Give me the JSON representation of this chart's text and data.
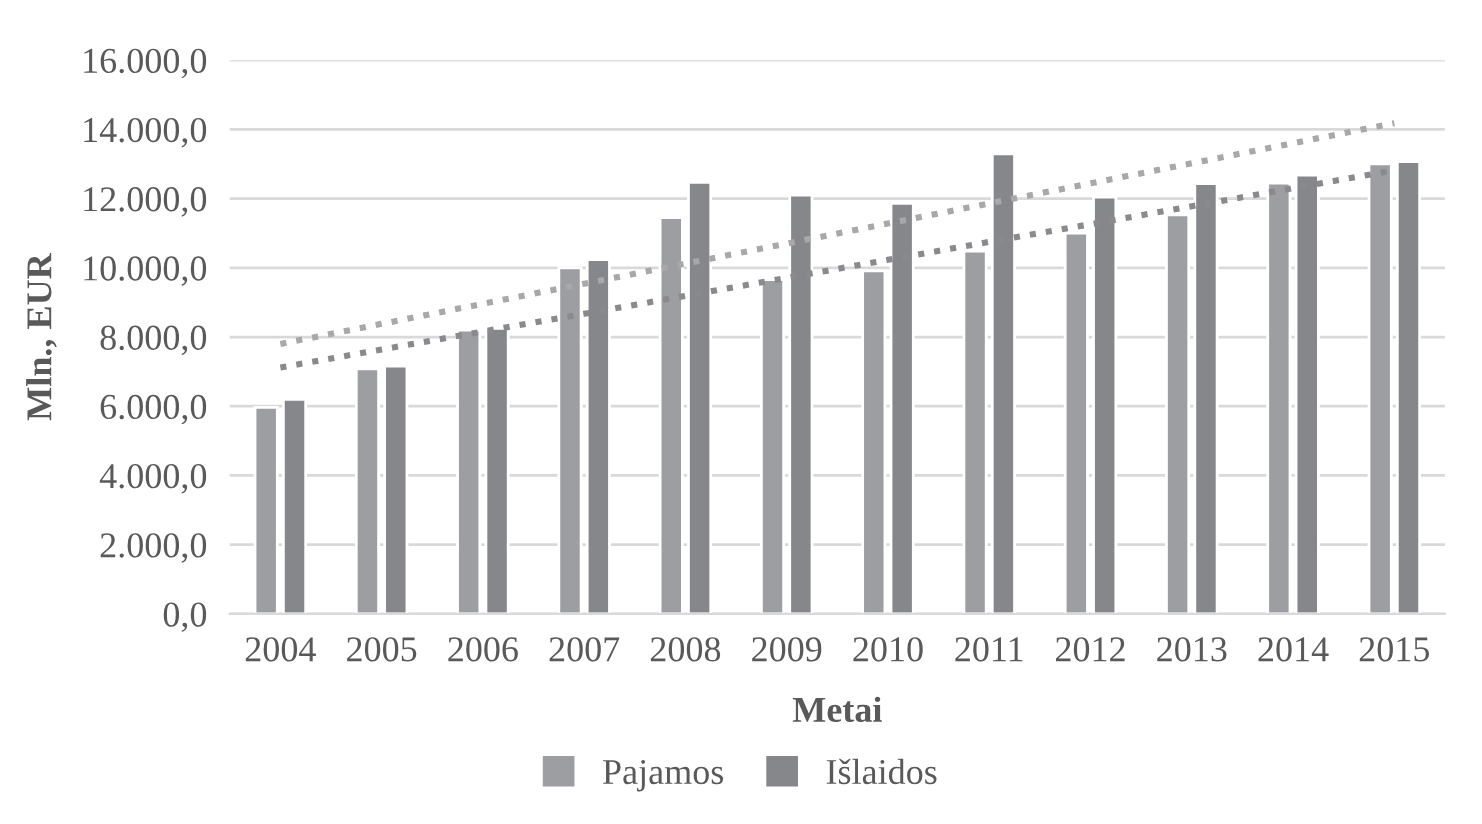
{
  "chart_data": {
    "type": "bar",
    "xlabel": "Metai",
    "ylabel": "Mln., EUR",
    "categories": [
      "2004",
      "2005",
      "2006",
      "2007",
      "2008",
      "2009",
      "2010",
      "2011",
      "2012",
      "2013",
      "2014",
      "2015"
    ],
    "series": [
      {
        "name": "Pajamos",
        "color": "#9d9ea2",
        "values": [
          5970,
          7080,
          8200,
          10000,
          11450,
          9660,
          9910,
          10480,
          11000,
          11530,
          12450,
          13000
        ]
      },
      {
        "name": "Išlaidos",
        "color": "#86878b",
        "values": [
          6200,
          7160,
          8250,
          10240,
          12470,
          12100,
          11860,
          13290,
          12040,
          12430,
          12680,
          13070
        ]
      },
      {
        "type": "line",
        "color": "#a8a8aa",
        "line_style": "dotted",
        "values": [
          7800,
          8380,
          8960,
          9540,
          10120,
          10700,
          11280,
          11860,
          12440,
          13020,
          13600,
          14180
        ]
      },
      {
        "type": "line",
        "color": "#8a8a8e",
        "line_style": "dotted",
        "values": [
          7120,
          7640,
          8160,
          8670,
          9190,
          9710,
          10230,
          10750,
          11260,
          11780,
          12300,
          12820
        ]
      }
    ],
    "ylim": [
      0,
      16000
    ],
    "yticks": [
      {
        "value": 0,
        "label": "0,0"
      },
      {
        "value": 2000,
        "label": "2.000,0"
      },
      {
        "value": 4000,
        "label": "4.000,0"
      },
      {
        "value": 6000,
        "label": "6.000,0"
      },
      {
        "value": 8000,
        "label": "8.000,0"
      },
      {
        "value": 10000,
        "label": "10.000,0"
      },
      {
        "value": 12000,
        "label": "12.000,0"
      },
      {
        "value": 14000,
        "label": "14.000,0"
      },
      {
        "value": 16000,
        "label": "16.000,0"
      }
    ],
    "grid": "y",
    "legend": "bottom"
  }
}
